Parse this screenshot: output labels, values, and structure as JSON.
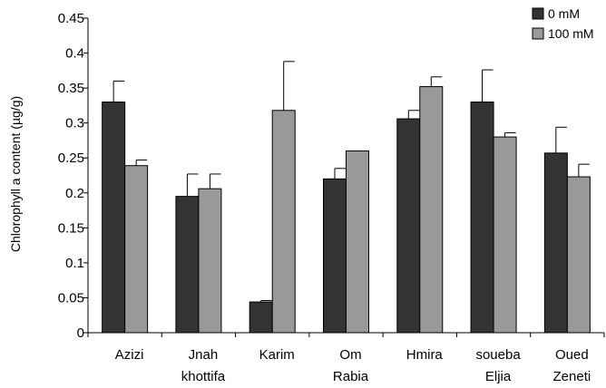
{
  "chart_data": {
    "type": "bar",
    "title": "",
    "xlabel": "",
    "ylabel": "Chlorophyll a content (µg/g)",
    "ylim": [
      0,
      0.45
    ],
    "yticks": [
      0,
      0.05,
      0.1,
      0.15,
      0.2,
      0.25,
      0.3,
      0.35,
      0.4,
      0.45
    ],
    "ytick_labels": [
      "0",
      "0.05",
      "0.1",
      "0.15",
      "0.2",
      "0.25",
      "0.3",
      "0.35",
      "0.4",
      "0.45"
    ],
    "grid": false,
    "legend_position": "top-right",
    "categories": [
      [
        "Azizi"
      ],
      [
        "Jnah",
        "khottifa"
      ],
      [
        "Karim"
      ],
      [
        "Om",
        "Rabia"
      ],
      [
        "Hmira"
      ],
      [
        "soueba",
        "Eljia"
      ],
      [
        "Oued",
        "Zeneti"
      ]
    ],
    "series": [
      {
        "name": "0 mM",
        "color": "#333333",
        "values": [
          0.33,
          0.195,
          0.044,
          0.22,
          0.306,
          0.33,
          0.257
        ],
        "errors": [
          0.03,
          0.032,
          0.002,
          0.015,
          0.012,
          0.046,
          0.037
        ]
      },
      {
        "name": "100 mM",
        "color": "#999999",
        "values": [
          0.239,
          0.206,
          0.318,
          0.26,
          0.352,
          0.28,
          0.223
        ],
        "errors": [
          0.008,
          0.021,
          0.07,
          0,
          0.014,
          0.006,
          0.018
        ]
      }
    ]
  }
}
